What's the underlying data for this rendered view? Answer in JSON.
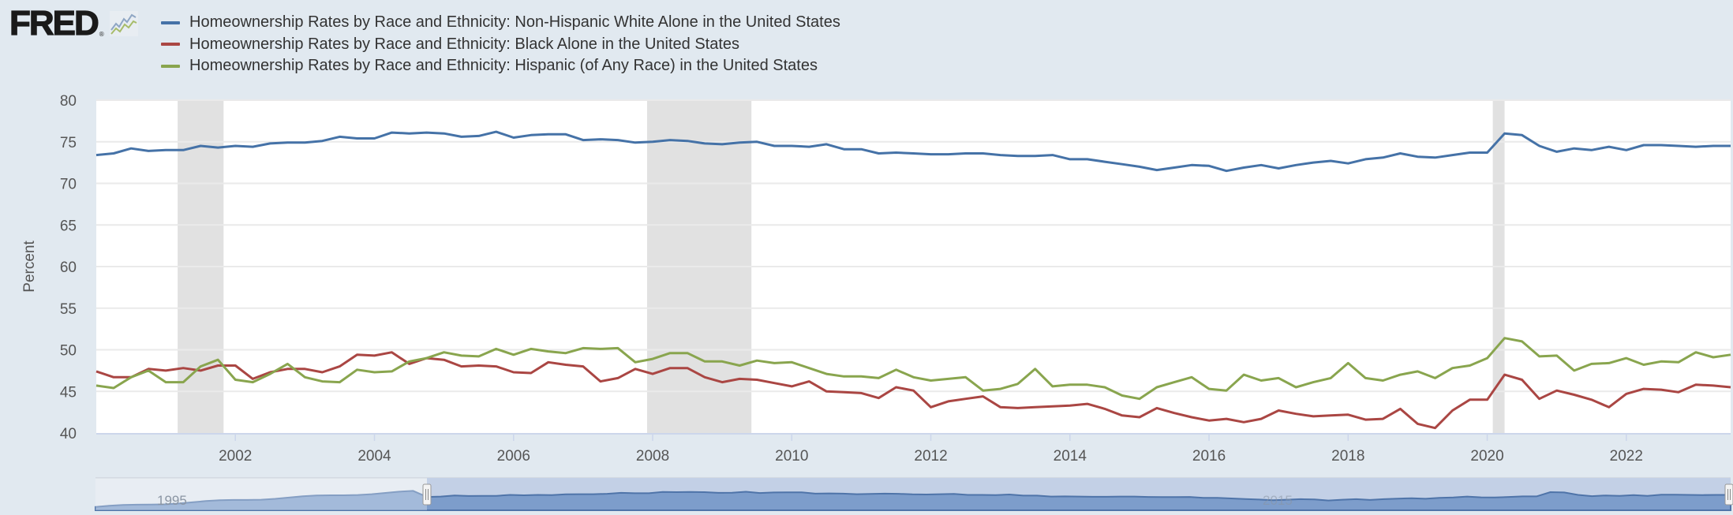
{
  "header": {
    "logo_text": "FRED",
    "logo_reg": "®",
    "logo_icon": "fred-chart-icon"
  },
  "chart_data": {
    "type": "line",
    "title": "",
    "xlabel": "",
    "ylabel": "Percent",
    "ylim": [
      40,
      80
    ],
    "xlim": [
      2000.0,
      2023.5
    ],
    "y_ticks": [
      "80",
      "75",
      "70",
      "65",
      "60",
      "55",
      "50",
      "45",
      "40"
    ],
    "x_ticks": [
      "2002",
      "2004",
      "2006",
      "2008",
      "2010",
      "2012",
      "2014",
      "2016",
      "2018",
      "2020",
      "2022"
    ],
    "grid": true,
    "legend_position": "top-left",
    "frequency": "quarterly",
    "start": "2000-Q1",
    "recessions": [
      {
        "start": 2001.17,
        "end": 2001.83
      },
      {
        "start": 2007.92,
        "end": 2009.42
      },
      {
        "start": 2020.08,
        "end": 2020.25
      }
    ],
    "series": [
      {
        "name": "Homeownership Rates by Race and Ethnicity: Non-Hispanic White Alone in the United States",
        "color": "#4572a7",
        "values": [
          73.4,
          73.6,
          74.2,
          73.9,
          74.0,
          74.0,
          74.5,
          74.3,
          74.5,
          74.4,
          74.8,
          74.9,
          74.9,
          75.1,
          75.6,
          75.4,
          75.4,
          76.1,
          76.0,
          76.1,
          76.0,
          75.6,
          75.7,
          76.2,
          75.5,
          75.8,
          75.9,
          75.9,
          75.2,
          75.3,
          75.2,
          74.9,
          75.0,
          75.2,
          75.1,
          74.8,
          74.7,
          74.9,
          75.0,
          74.5,
          74.5,
          74.4,
          74.7,
          74.1,
          74.1,
          73.6,
          73.7,
          73.6,
          73.5,
          73.5,
          73.6,
          73.6,
          73.4,
          73.3,
          73.3,
          73.4,
          72.9,
          72.9,
          72.6,
          72.3,
          72.0,
          71.6,
          71.9,
          72.2,
          72.1,
          71.5,
          71.9,
          72.2,
          71.8,
          72.2,
          72.5,
          72.7,
          72.4,
          72.9,
          73.1,
          73.6,
          73.2,
          73.1,
          73.4,
          73.7,
          73.7,
          76.0,
          75.8,
          74.5,
          73.8,
          74.2,
          74.0,
          74.4,
          74.0,
          74.6,
          74.6,
          74.5,
          74.4,
          74.5,
          74.5
        ]
      },
      {
        "name": "Homeownership Rates by Race and Ethnicity: Black Alone in the United States",
        "color": "#aa4643",
        "values": [
          47.4,
          46.7,
          46.7,
          47.7,
          47.5,
          47.8,
          47.5,
          48.1,
          48.1,
          46.5,
          47.3,
          47.7,
          47.7,
          47.3,
          48.0,
          49.4,
          49.3,
          49.7,
          48.3,
          49.0,
          48.8,
          48.0,
          48.1,
          48.0,
          47.3,
          47.2,
          48.5,
          48.2,
          48.0,
          46.2,
          46.6,
          47.7,
          47.1,
          47.8,
          47.8,
          46.7,
          46.1,
          46.5,
          46.4,
          46.0,
          45.6,
          46.2,
          45.0,
          44.9,
          44.8,
          44.2,
          45.5,
          45.1,
          43.1,
          43.8,
          44.1,
          44.4,
          43.1,
          43.0,
          43.1,
          43.2,
          43.3,
          43.5,
          42.9,
          42.1,
          41.9,
          43.0,
          42.4,
          41.9,
          41.5,
          41.7,
          41.3,
          41.7,
          42.7,
          42.3,
          42.0,
          42.1,
          42.2,
          41.6,
          41.7,
          42.9,
          41.1,
          40.6,
          42.7,
          44.0,
          44.0,
          47.0,
          46.4,
          44.1,
          45.1,
          44.6,
          44.0,
          43.1,
          44.7,
          45.3,
          45.2,
          44.9,
          45.8,
          45.7,
          45.5
        ]
      },
      {
        "name": "Homeownership Rates by Race and Ethnicity: Hispanic (of Any Race) in the United States",
        "color": "#89a54e",
        "values": [
          45.7,
          45.4,
          46.7,
          47.5,
          46.1,
          46.1,
          48.0,
          48.8,
          46.4,
          46.1,
          47.1,
          48.3,
          46.7,
          46.2,
          46.1,
          47.6,
          47.3,
          47.4,
          48.6,
          49.0,
          49.7,
          49.3,
          49.2,
          50.1,
          49.4,
          50.1,
          49.8,
          49.6,
          50.2,
          50.1,
          50.2,
          48.5,
          48.9,
          49.6,
          49.6,
          48.6,
          48.6,
          48.1,
          48.7,
          48.4,
          48.5,
          47.8,
          47.1,
          46.8,
          46.8,
          46.6,
          47.6,
          46.7,
          46.3,
          46.5,
          46.7,
          45.1,
          45.3,
          45.9,
          47.7,
          45.6,
          45.8,
          45.8,
          45.5,
          44.5,
          44.1,
          45.5,
          46.1,
          46.7,
          45.3,
          45.1,
          47.0,
          46.3,
          46.6,
          45.5,
          46.1,
          46.6,
          48.4,
          46.6,
          46.3,
          47.0,
          47.4,
          46.6,
          47.8,
          48.1,
          49.0,
          51.4,
          51.0,
          49.2,
          49.3,
          47.5,
          48.3,
          48.4,
          49.0,
          48.2,
          48.6,
          48.5,
          49.7,
          49.1,
          49.4
        ]
      }
    ],
    "navigator": {
      "labels": [
        "1995",
        "2015"
      ],
      "selection_start": 2000.0,
      "selection_end": 2023.5
    }
  }
}
